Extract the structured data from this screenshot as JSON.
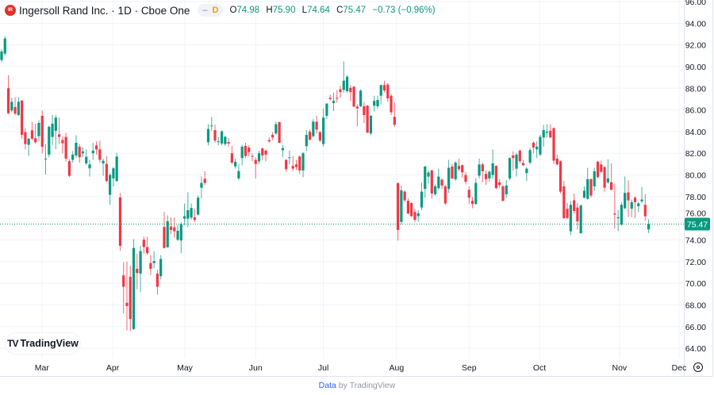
{
  "header": {
    "logo_text": "IR",
    "title": "Ingersoll Rand Inc. · 1D · Cboe One",
    "pill_dash": "–",
    "pill_interval": "D",
    "o_label": "O",
    "o_value": "74.98",
    "h_label": "H",
    "h_value": "75.90",
    "l_label": "L",
    "l_value": "74.64",
    "c_label": "C",
    "c_value": "75.47",
    "change": "−0.73 (−0.96%)"
  },
  "watermark": {
    "mark": "TV",
    "text": "TradingView"
  },
  "footer": {
    "link": "Data",
    "rest": " by TradingView"
  },
  "settings_icon": "gear-icon",
  "colors": {
    "up": "#089981",
    "down": "#f23645",
    "grid": "#f0f3fa",
    "axis_text": "#131722",
    "price_line": "#089981"
  },
  "chart_data": {
    "type": "candlestick",
    "title": "",
    "ylim": [
      64,
      96
    ],
    "y_ticks": [
      "64.00",
      "66.00",
      "68.00",
      "70.00",
      "72.00",
      "74.00",
      "76.00",
      "78.00",
      "80.00",
      "82.00",
      "84.00",
      "86.00",
      "88.00",
      "90.00",
      "92.00",
      "94.00",
      "96.00"
    ],
    "last_price": "75.47",
    "grid": true,
    "x_month_labels": [
      {
        "label": "Mar",
        "bar": 11.9
      },
      {
        "label": "Apr",
        "bar": 32.8
      },
      {
        "label": "May",
        "bar": 54.1
      },
      {
        "label": "Jun",
        "bar": 75
      },
      {
        "label": "Jul",
        "bar": 95
      },
      {
        "label": "Aug",
        "bar": 116.6
      },
      {
        "label": "Sep",
        "bar": 138
      },
      {
        "label": "Oct",
        "bar": 158.8
      },
      {
        "label": "Nov",
        "bar": 182.4
      },
      {
        "label": "Dec",
        "bar": 200
      }
    ],
    "candles_ohlc": [
      [
        90.6,
        91.6,
        90.4,
        91.4
      ],
      [
        91.2,
        92.8,
        91.0,
        92.6
      ],
      [
        88.0,
        89.2,
        85.6,
        85.7
      ],
      [
        85.95,
        87.12,
        85.78,
        86.75
      ],
      [
        86.27,
        87.17,
        85.53,
        85.66
      ],
      [
        85.53,
        87.17,
        85.46,
        86.75
      ],
      [
        86.87,
        86.9,
        83.34,
        83.7
      ],
      [
        83.95,
        84.3,
        82.36,
        82.85
      ],
      [
        82.78,
        83.41,
        81.75,
        83.34
      ],
      [
        84.12,
        84.9,
        83.22,
        83.34
      ],
      [
        83.39,
        84.73,
        82.85,
        83.02
      ],
      [
        83.58,
        85.05,
        83.1,
        84.8
      ],
      [
        85.46,
        85.95,
        82.0,
        82.6
      ],
      [
        81.46,
        82.85,
        80.05,
        81.5
      ],
      [
        81.88,
        84.56,
        81.63,
        84.44
      ],
      [
        83.51,
        85.53,
        82.73,
        84.73
      ],
      [
        84.07,
        85.53,
        82.36,
        85.29
      ],
      [
        83.75,
        85.29,
        82.85,
        83.51
      ],
      [
        83.22,
        83.58,
        82.0,
        82.93
      ],
      [
        83.51,
        83.9,
        81.22,
        81.51
      ],
      [
        81.27,
        81.46,
        79.8,
        79.92
      ],
      [
        81.39,
        82.2,
        81.14,
        81.88
      ],
      [
        81.8,
        83.66,
        81.56,
        82.97
      ],
      [
        82.6,
        82.85,
        81.14,
        81.63
      ],
      [
        82.0,
        82.53,
        81.63,
        82.17
      ],
      [
        81.07,
        82.36,
        80.9,
        81.68
      ],
      [
        80.61,
        81.39,
        79.85,
        80.97
      ],
      [
        82.0,
        82.97,
        81.39,
        82.24
      ],
      [
        82.73,
        83.1,
        81.88,
        82.36
      ],
      [
        82.36,
        83.17,
        81.14,
        81.39
      ],
      [
        81.07,
        81.51,
        79.92,
        81.31
      ],
      [
        81.02,
        81.75,
        79.32,
        79.44
      ],
      [
        78.17,
        80.17,
        77.24,
        80.0
      ],
      [
        79.68,
        80.73,
        78.95,
        80.61
      ],
      [
        79.44,
        82.05,
        79.36,
        81.7
      ],
      [
        77.92,
        78.34,
        73.02,
        73.46
      ],
      [
        70.73,
        71.95,
        67.24,
        69.68
      ],
      [
        68.2,
        72.0,
        65.65,
        67.9
      ],
      [
        70.6,
        71.63,
        65.6,
        66.7
      ],
      [
        65.78,
        74.07,
        65.7,
        73.26
      ],
      [
        71.34,
        72.73,
        69.44,
        70.95
      ],
      [
        70.9,
        73.46,
        69.2,
        72.97
      ],
      [
        74.02,
        74.31,
        72.73,
        73.34
      ],
      [
        73.34,
        74.31,
        72.6,
        72.78
      ],
      [
        71.87,
        72.6,
        70.77,
        71.34
      ],
      [
        71.87,
        72.97,
        71.39,
        72.05
      ],
      [
        70.9,
        71.26,
        68.95,
        69.68
      ],
      [
        70.66,
        72.6,
        70.34,
        72.24
      ],
      [
        75.2,
        76.58,
        73.21,
        73.26
      ],
      [
        73.34,
        76.26,
        73.26,
        75.73
      ],
      [
        75.24,
        76.07,
        74.56,
        74.92
      ],
      [
        75.17,
        76.07,
        74.19,
        74.8
      ],
      [
        74.02,
        75.41,
        73.9,
        74.85
      ],
      [
        73.95,
        75.65,
        72.78,
        75.46
      ],
      [
        75.97,
        77.36,
        75.36,
        76.19
      ],
      [
        75.97,
        78.41,
        75.2,
        76.75
      ],
      [
        76.07,
        77.36,
        75.9,
        76.95
      ],
      [
        76.09,
        76.87,
        75.65,
        75.85
      ],
      [
        76.34,
        78.1,
        76.26,
        77.9
      ],
      [
        78.82,
        79.87,
        77.85,
        79.26
      ],
      [
        79.65,
        80.34,
        79.07,
        79.26
      ],
      [
        83.02,
        84.68,
        82.73,
        84.24
      ],
      [
        84.49,
        85.36,
        84.07,
        84.56
      ],
      [
        84.14,
        84.63,
        82.97,
        83.17
      ],
      [
        83.04,
        83.51,
        82.73,
        83.1
      ],
      [
        82.9,
        84.12,
        82.73,
        84.02
      ],
      [
        82.85,
        83.58,
        82.68,
        83.53
      ],
      [
        83.04,
        83.41,
        82.6,
        82.9
      ],
      [
        82.0,
        82.68,
        80.97,
        81.14
      ],
      [
        80.78,
        81.51,
        80.58,
        81.22
      ],
      [
        79.68,
        80.97,
        79.51,
        80.36
      ],
      [
        81.56,
        82.78,
        80.9,
        82.61
      ],
      [
        82.68,
        82.97,
        81.56,
        81.75
      ],
      [
        82.53,
        82.73,
        81.7,
        82.12
      ],
      [
        81.75,
        82.0,
        81.27,
        81.68
      ],
      [
        81.39,
        81.63,
        79.68,
        81.02
      ],
      [
        81.26,
        82.24,
        81.02,
        82.0
      ],
      [
        82.44,
        82.53,
        81.39,
        81.8
      ],
      [
        82.24,
        82.36,
        81.26,
        81.87
      ],
      [
        83.22,
        83.46,
        82.97,
        83.1
      ],
      [
        83.7,
        83.95,
        83.22,
        83.46
      ],
      [
        83.83,
        84.92,
        83.7,
        84.68
      ],
      [
        84.87,
        84.92,
        82.92,
        82.97
      ],
      [
        82.29,
        82.78,
        81.63,
        82.48
      ],
      [
        81.39,
        81.44,
        80.29,
        80.53
      ],
      [
        81.56,
        82.24,
        81.02,
        81.63
      ],
      [
        80.83,
        81.75,
        80.34,
        80.58
      ],
      [
        80.97,
        81.39,
        80.48,
        80.73
      ],
      [
        81.7,
        81.8,
        80.09,
        80.41
      ],
      [
        80.41,
        82.12,
        79.8,
        82.0
      ],
      [
        82.66,
        84.14,
        82.19,
        83.7
      ],
      [
        83.99,
        84.19,
        83.17,
        83.26
      ],
      [
        83.58,
        85.17,
        83.46,
        84.92
      ],
      [
        84.92,
        85.46,
        83.83,
        84.19
      ],
      [
        83.95,
        84.07,
        83.02,
        83.17
      ],
      [
        82.85,
        86.14,
        82.61,
        85.29
      ],
      [
        85.46,
        86.63,
        85.17,
        86.58
      ],
      [
        87.12,
        87.41,
        86.87,
        87.0
      ],
      [
        86.63,
        87.61,
        85.9,
        86.83
      ],
      [
        87.12,
        87.85,
        86.68,
        87.04
      ],
      [
        87.9,
        88.22,
        87.12,
        87.65
      ],
      [
        87.85,
        90.48,
        87.61,
        88.7
      ],
      [
        87.73,
        89.19,
        87.61,
        89.07
      ],
      [
        88.04,
        88.29,
        86.83,
        87.65
      ],
      [
        88.14,
        88.22,
        86.26,
        86.31
      ],
      [
        86.31,
        86.51,
        84.48,
        86.14
      ],
      [
        86.34,
        87.9,
        86.26,
        87.78
      ],
      [
        86.34,
        86.75,
        84.8,
        85.53
      ],
      [
        86.39,
        86.44,
        83.87,
        83.9
      ],
      [
        83.83,
        85.53,
        83.66,
        85.46
      ],
      [
        86.39,
        87.31,
        85.85,
        86.83
      ],
      [
        86.34,
        87.31,
        86.09,
        86.92
      ],
      [
        87.31,
        88.34,
        86.51,
        88.29
      ],
      [
        88.29,
        88.7,
        87.61,
        87.8
      ],
      [
        88.34,
        88.46,
        86.75,
        87.07
      ],
      [
        87.31,
        87.48,
        85.53,
        85.78
      ],
      [
        85.36,
        86.68,
        84.43,
        84.63
      ],
      [
        79.24,
        79.31,
        73.95,
        74.92
      ],
      [
        75.66,
        79.02,
        75.41,
        78.58
      ],
      [
        78.46,
        78.58,
        77.49,
        77.66
      ],
      [
        77.61,
        77.85,
        76.39,
        76.44
      ],
      [
        77.41,
        77.49,
        76.14,
        76.19
      ],
      [
        76.58,
        76.88,
        75.66,
        75.85
      ],
      [
        76.19,
        76.75,
        75.66,
        76.46
      ],
      [
        77.0,
        79.32,
        76.75,
        78.46
      ],
      [
        78.71,
        80.83,
        77.9,
        80.78
      ],
      [
        79.85,
        80.41,
        79.19,
        80.22
      ],
      [
        80.41,
        80.49,
        77.8,
        78.29
      ],
      [
        78.22,
        79.12,
        78.1,
        78.95
      ],
      [
        78.78,
        80.58,
        78.63,
        79.85
      ],
      [
        79.56,
        79.68,
        78.71,
        79.02
      ],
      [
        78.95,
        79.07,
        77.24,
        77.37
      ],
      [
        78.71,
        81.39,
        78.34,
        80.66
      ],
      [
        80.78,
        81.02,
        79.61,
        79.68
      ],
      [
        79.61,
        81.27,
        79.44,
        81.14
      ],
      [
        80.83,
        81.51,
        80.34,
        80.53
      ],
      [
        80.9,
        80.97,
        79.76,
        80.24
      ],
      [
        80.0,
        80.29,
        79.12,
        79.37
      ],
      [
        78.63,
        78.95,
        77.32,
        77.9
      ],
      [
        77.61,
        77.97,
        76.93,
        77.32
      ],
      [
        77.32,
        79.68,
        77.24,
        79.27
      ],
      [
        79.93,
        81.51,
        79.68,
        80.97
      ],
      [
        80.97,
        81.14,
        79.32,
        80.34
      ],
      [
        80.1,
        80.41,
        79.07,
        79.61
      ],
      [
        79.68,
        80.41,
        79.37,
        80.29
      ],
      [
        80.0,
        82.36,
        79.68,
        81.07
      ],
      [
        80.83,
        80.9,
        78.71,
        78.78
      ],
      [
        79.32,
        79.61,
        78.83,
        79.07
      ],
      [
        78.95,
        79.07,
        77.56,
        77.61
      ],
      [
        78.22,
        79.51,
        77.9,
        79.02
      ],
      [
        79.68,
        81.63,
        79.51,
        81.56
      ],
      [
        81.8,
        82.19,
        80.41,
        81.56
      ],
      [
        80.58,
        82.05,
        79.85,
        81.88
      ],
      [
        82.24,
        82.36,
        81.07,
        81.27
      ],
      [
        81.1,
        81.39,
        80.78,
        80.9
      ],
      [
        80.17,
        80.73,
        79.44,
        80.58
      ],
      [
        81.14,
        82.49,
        80.97,
        82.29
      ],
      [
        82.97,
        83.1,
        82.0,
        82.53
      ],
      [
        82.36,
        83.1,
        81.56,
        82.61
      ],
      [
        81.88,
        83.7,
        81.75,
        83.51
      ],
      [
        83.46,
        84.63,
        82.61,
        84.14
      ],
      [
        83.9,
        84.68,
        83.46,
        84.0
      ],
      [
        84.07,
        84.68,
        83.41,
        83.46
      ],
      [
        84.32,
        84.39,
        81.02,
        81.32
      ],
      [
        81.51,
        81.88,
        80.9,
        80.97
      ],
      [
        81.27,
        81.32,
        78.29,
        78.46
      ],
      [
        78.95,
        79.44,
        75.95,
        76.02
      ],
      [
        76.88,
        77.41,
        75.95,
        76.02
      ],
      [
        74.8,
        77.61,
        74.44,
        77.24
      ],
      [
        77.66,
        78.29,
        76.44,
        76.68
      ],
      [
        76.99,
        77.41,
        74.97,
        75.71
      ],
      [
        74.63,
        77.32,
        74.56,
        77.17
      ],
      [
        77.9,
        78.95,
        77.85,
        78.54
      ],
      [
        77.8,
        80.66,
        77.73,
        79.61
      ],
      [
        79.61,
        79.68,
        77.9,
        78.1
      ],
      [
        78.95,
        80.66,
        78.54,
        80.34
      ],
      [
        81.22,
        81.32,
        79.68,
        79.8
      ],
      [
        80.97,
        81.32,
        80.17,
        80.29
      ],
      [
        80.73,
        80.78,
        78.46,
        78.83
      ],
      [
        79.32,
        81.44,
        79.19,
        79.68
      ],
      [
        79.32,
        81.07,
        78.58,
        78.63
      ],
      [
        76.44,
        79.19,
        75.05,
        76.34
      ],
      [
        76.0,
        76.75,
        74.8,
        76.1
      ],
      [
        75.41,
        77.49,
        75.29,
        77.24
      ],
      [
        76.93,
        79.85,
        76.83,
        78.34
      ],
      [
        78.39,
        79.51,
        76.1,
        77.66
      ],
      [
        76.88,
        77.73,
        76.1,
        77.49
      ],
      [
        77.9,
        78.05,
        76.02,
        77.49
      ],
      [
        77.12,
        77.49,
        76.58,
        77.37
      ],
      [
        77.56,
        78.88,
        77.41,
        77.73
      ],
      [
        77.24,
        78.22,
        75.78,
        76.19
      ],
      [
        74.98,
        75.9,
        74.64,
        75.47
      ]
    ]
  }
}
